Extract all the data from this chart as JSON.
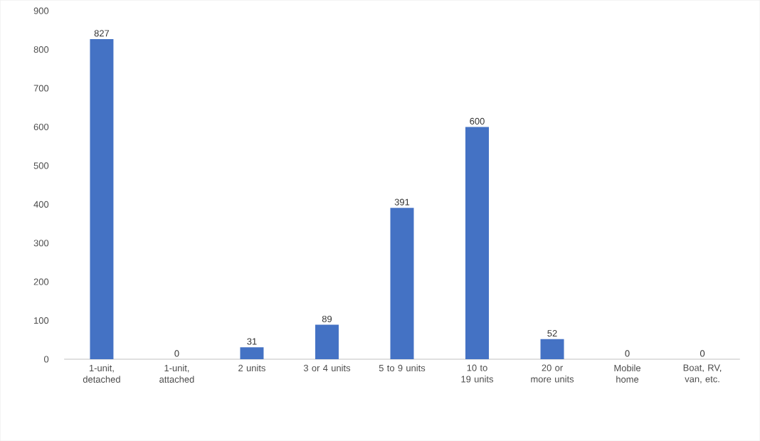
{
  "chart_data": {
    "type": "bar",
    "categories": [
      "1-unit, detached",
      "1-unit, attached",
      "2 units",
      "3 or 4 units",
      "5 to 9 units",
      "10 to 19 units",
      "20 or more units",
      "Mobile home",
      "Boat, RV, van, etc."
    ],
    "values": [
      827,
      0,
      31,
      89,
      391,
      600,
      52,
      0,
      0
    ],
    "color": "#4472c4",
    "ylim": [
      0,
      900
    ],
    "yticks": [
      0,
      100,
      200,
      300,
      400,
      500,
      600,
      700,
      800,
      900
    ],
    "grid": false,
    "data_labels": true
  }
}
